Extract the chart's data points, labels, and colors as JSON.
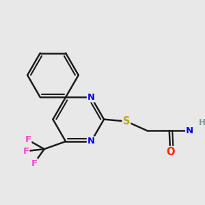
{
  "bg_color": "#e8e8e8",
  "bond_color": "#1a1a1a",
  "bond_width": 1.8,
  "atom_colors": {
    "N": "#0000ee",
    "S": "#bbaa00",
    "O": "#ff2200",
    "F": "#ff44cc",
    "H": "#7a9a9a",
    "C": "#1a1a1a"
  },
  "font_size": 9,
  "fig_size": [
    3.0,
    3.0
  ],
  "dpi": 100
}
